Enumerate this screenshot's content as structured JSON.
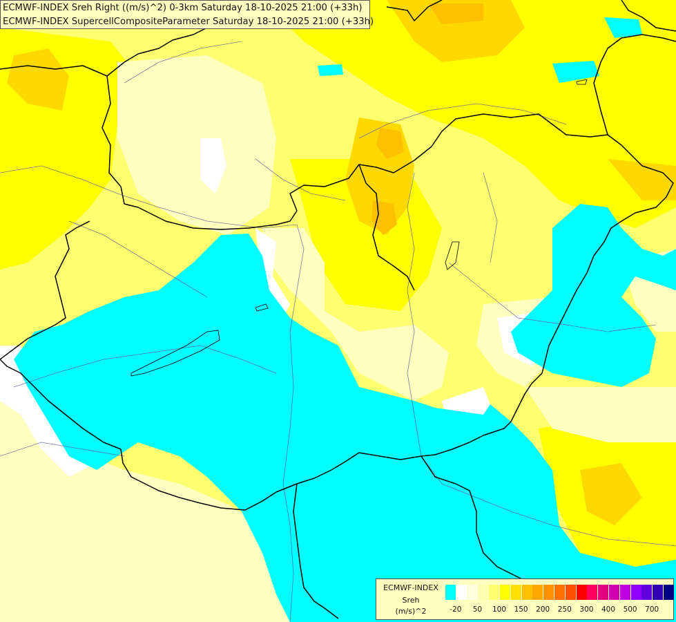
{
  "header": {
    "line1": "ECMWF-INDEX Sreh Right ((m/s)^2) 0-3km Saturday 18-10-2025 21:00 (+33h)",
    "line2": "ECMWF-INDEX SupercellCompositeParameter Saturday 18-10-2025 21:00 (+33h)"
  },
  "legend": {
    "title1": "ECMWF-INDEX",
    "title2": "Sreh",
    "unit": "(m/s)^2",
    "colors": [
      "#00ffff",
      "#ffffff",
      "#ffffe0",
      "#ffffb0",
      "#ffff70",
      "#ffff00",
      "#ffe000",
      "#ffc000",
      "#ffa800",
      "#ff9000",
      "#ff7000",
      "#ff5000",
      "#ff0000",
      "#ff0060",
      "#e00080",
      "#d000b0",
      "#c000e0",
      "#9000ff",
      "#6000e0",
      "#3000b0",
      "#000080"
    ],
    "ticks": [
      "-20",
      "50",
      "100",
      "150",
      "200",
      "250",
      "300",
      "400",
      "500",
      "700"
    ]
  },
  "colors": {
    "cyan": "#00ffff",
    "pale": "#ffffc0",
    "light_yellow": "#ffff80",
    "yellow": "#ffff00",
    "gold": "#ffd700",
    "orange": "#ffc000",
    "borders": "#000000",
    "rivers": "#555588"
  }
}
